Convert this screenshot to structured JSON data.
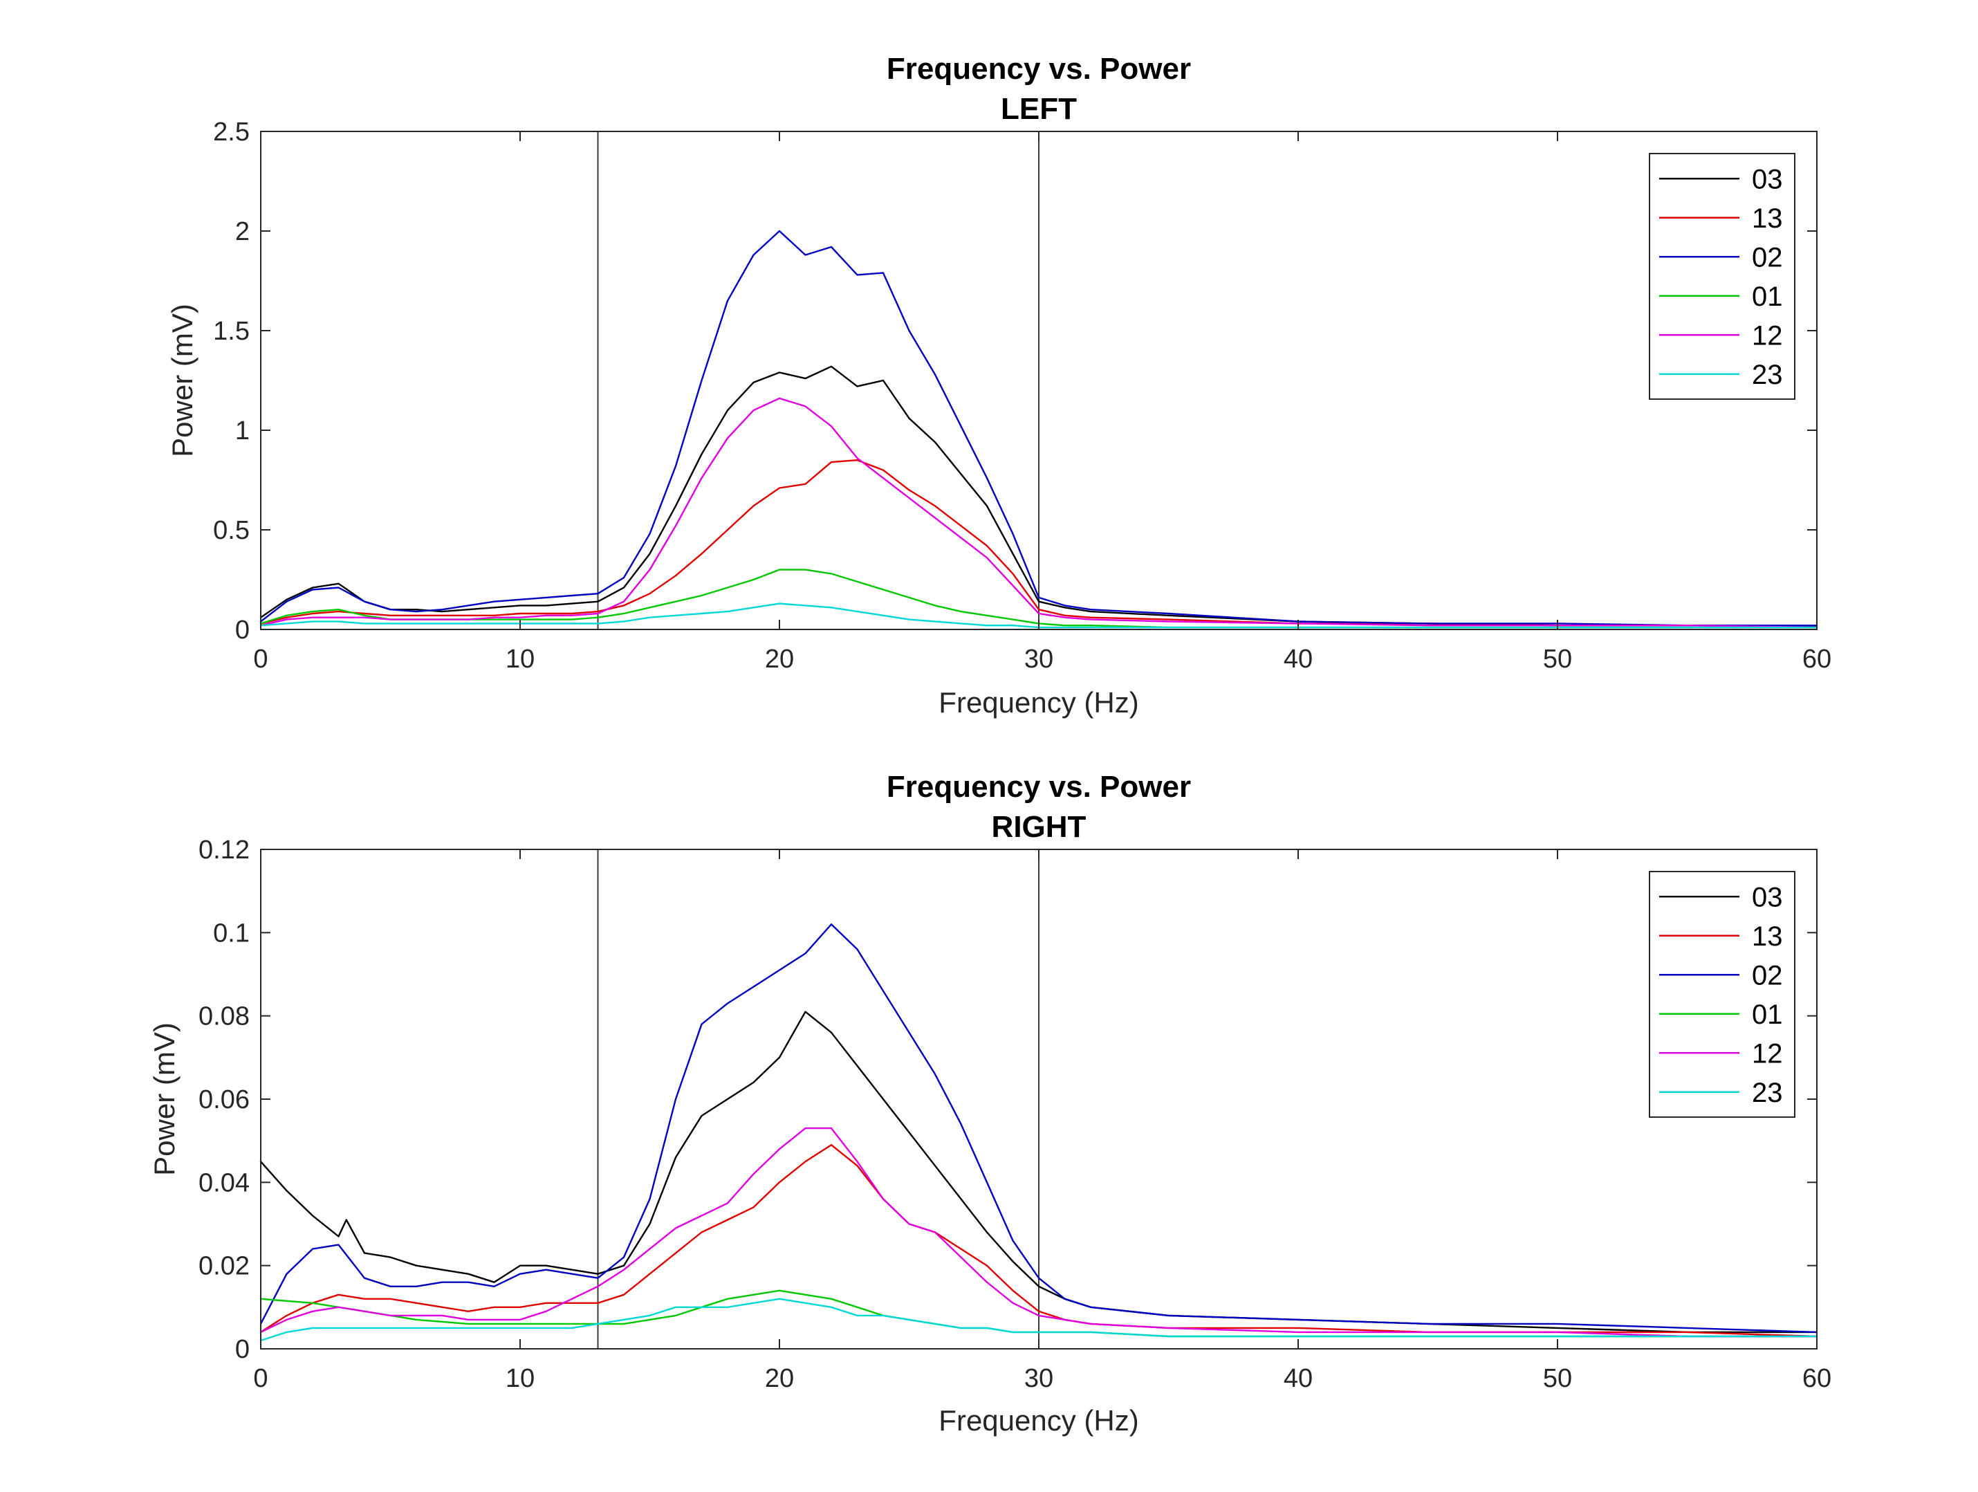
{
  "chart_data": [
    {
      "type": "line",
      "title": "Frequency vs. Power",
      "subtitle": "LEFT",
      "xlabel": "Frequency (Hz)",
      "ylabel": "Power (mV)",
      "xlim": [
        0,
        60
      ],
      "ylim": [
        0,
        2.5
      ],
      "xticks": [
        0,
        10,
        20,
        30,
        40,
        50,
        60
      ],
      "yticks": [
        0,
        0.5,
        1,
        1.5,
        2,
        2.5
      ],
      "xtick_labels": [
        "0",
        "10",
        "20",
        "30",
        "40",
        "50",
        "60"
      ],
      "ytick_labels": [
        "0",
        "0.5",
        "1",
        "1.5",
        "2",
        "2.5"
      ],
      "vlines": [
        13,
        30
      ],
      "legend_position": "top-right",
      "grid": false,
      "series": [
        {
          "name": "03",
          "color": "#000000",
          "x": [
            0,
            1,
            2,
            3,
            4,
            5,
            6,
            7,
            8,
            9,
            10,
            11,
            12,
            13,
            14,
            15,
            16,
            17,
            18,
            19,
            20,
            21,
            22,
            23,
            24,
            25,
            26,
            27,
            28,
            29,
            30,
            31,
            32,
            35,
            40,
            45,
            50,
            55,
            60
          ],
          "y": [
            0.06,
            0.15,
            0.21,
            0.23,
            0.14,
            0.1,
            0.1,
            0.09,
            0.1,
            0.11,
            0.12,
            0.12,
            0.13,
            0.14,
            0.21,
            0.38,
            0.62,
            0.88,
            1.1,
            1.24,
            1.29,
            1.26,
            1.32,
            1.22,
            1.25,
            1.06,
            0.94,
            0.78,
            0.62,
            0.38,
            0.14,
            0.11,
            0.09,
            0.07,
            0.04,
            0.03,
            0.02,
            0.02,
            0.015
          ]
        },
        {
          "name": "13",
          "color": "#e00000",
          "x": [
            0,
            1,
            2,
            3,
            4,
            5,
            6,
            7,
            8,
            9,
            10,
            11,
            12,
            13,
            14,
            15,
            16,
            17,
            18,
            19,
            20,
            21,
            22,
            23,
            24,
            25,
            26,
            27,
            28,
            29,
            30,
            31,
            32,
            35,
            40,
            45,
            50,
            55,
            60
          ],
          "y": [
            0.03,
            0.06,
            0.08,
            0.09,
            0.08,
            0.07,
            0.07,
            0.07,
            0.07,
            0.07,
            0.08,
            0.08,
            0.08,
            0.09,
            0.12,
            0.18,
            0.27,
            0.38,
            0.5,
            0.62,
            0.71,
            0.73,
            0.84,
            0.85,
            0.8,
            0.7,
            0.62,
            0.52,
            0.42,
            0.28,
            0.1,
            0.07,
            0.06,
            0.05,
            0.03,
            0.03,
            0.02,
            0.02,
            0.02
          ]
        },
        {
          "name": "02",
          "color": "#0000c0",
          "x": [
            0,
            1,
            2,
            3,
            4,
            5,
            6,
            7,
            8,
            9,
            10,
            11,
            12,
            13,
            14,
            15,
            16,
            17,
            18,
            19,
            20,
            21,
            22,
            23,
            24,
            25,
            26,
            27,
            28,
            29,
            30,
            31,
            32,
            35,
            40,
            45,
            50,
            55,
            60
          ],
          "y": [
            0.04,
            0.14,
            0.2,
            0.21,
            0.14,
            0.1,
            0.09,
            0.1,
            0.12,
            0.14,
            0.15,
            0.16,
            0.17,
            0.18,
            0.26,
            0.48,
            0.82,
            1.25,
            1.65,
            1.88,
            2.0,
            1.88,
            1.92,
            1.78,
            1.79,
            1.5,
            1.28,
            1.02,
            0.76,
            0.48,
            0.16,
            0.12,
            0.1,
            0.08,
            0.04,
            0.03,
            0.03,
            0.02,
            0.02
          ]
        },
        {
          "name": "01",
          "color": "#00c800",
          "x": [
            0,
            1,
            2,
            3,
            4,
            5,
            6,
            7,
            8,
            9,
            10,
            11,
            12,
            13,
            14,
            15,
            16,
            17,
            18,
            19,
            20,
            21,
            22,
            23,
            24,
            25,
            26,
            27,
            28,
            29,
            30,
            31,
            32,
            35,
            40,
            45,
            50,
            55,
            60
          ],
          "y": [
            0.03,
            0.07,
            0.09,
            0.1,
            0.07,
            0.05,
            0.05,
            0.05,
            0.05,
            0.05,
            0.05,
            0.05,
            0.05,
            0.06,
            0.08,
            0.11,
            0.14,
            0.17,
            0.21,
            0.25,
            0.3,
            0.3,
            0.28,
            0.24,
            0.2,
            0.16,
            0.12,
            0.09,
            0.07,
            0.05,
            0.03,
            0.02,
            0.02,
            0.01,
            0.01,
            0.01,
            0.01,
            0.01,
            0.01
          ]
        },
        {
          "name": "12",
          "color": "#e000e0",
          "x": [
            0,
            1,
            2,
            3,
            4,
            5,
            6,
            7,
            8,
            9,
            10,
            11,
            12,
            13,
            14,
            15,
            16,
            17,
            18,
            19,
            20,
            21,
            22,
            23,
            24,
            25,
            26,
            27,
            28,
            29,
            30,
            31,
            32,
            35,
            40,
            45,
            50,
            55,
            60
          ],
          "y": [
            0.02,
            0.05,
            0.06,
            0.06,
            0.06,
            0.05,
            0.05,
            0.05,
            0.05,
            0.06,
            0.06,
            0.07,
            0.07,
            0.08,
            0.14,
            0.3,
            0.52,
            0.76,
            0.96,
            1.1,
            1.16,
            1.12,
            1.02,
            0.86,
            0.76,
            0.66,
            0.56,
            0.46,
            0.36,
            0.22,
            0.08,
            0.06,
            0.05,
            0.04,
            0.03,
            0.02,
            0.02,
            0.02,
            0.01
          ]
        },
        {
          "name": "23",
          "color": "#00d8d8",
          "x": [
            0,
            1,
            2,
            3,
            4,
            5,
            6,
            7,
            8,
            9,
            10,
            11,
            12,
            13,
            14,
            15,
            16,
            17,
            18,
            19,
            20,
            21,
            22,
            23,
            24,
            25,
            26,
            27,
            28,
            29,
            30,
            31,
            32,
            35,
            40,
            45,
            50,
            55,
            60
          ],
          "y": [
            0.02,
            0.03,
            0.04,
            0.04,
            0.03,
            0.03,
            0.03,
            0.03,
            0.03,
            0.03,
            0.03,
            0.03,
            0.03,
            0.03,
            0.04,
            0.06,
            0.07,
            0.08,
            0.09,
            0.11,
            0.13,
            0.12,
            0.11,
            0.09,
            0.07,
            0.05,
            0.04,
            0.03,
            0.02,
            0.02,
            0.01,
            0.01,
            0.01,
            0.01,
            0.01,
            0.01,
            0.01,
            0.01,
            0.01
          ]
        }
      ]
    },
    {
      "type": "line",
      "title": "Frequency vs. Power",
      "subtitle": "RIGHT",
      "xlabel": "Frequency (Hz)",
      "ylabel": "Power (mV)",
      "xlim": [
        0,
        60
      ],
      "ylim": [
        0,
        0.12
      ],
      "xticks": [
        0,
        10,
        20,
        30,
        40,
        50,
        60
      ],
      "yticks": [
        0,
        0.02,
        0.04,
        0.06,
        0.08,
        0.1,
        0.12
      ],
      "xtick_labels": [
        "0",
        "10",
        "20",
        "30",
        "40",
        "50",
        "60"
      ],
      "ytick_labels": [
        "0",
        "0.02",
        "0.04",
        "0.06",
        "0.08",
        "0.1",
        "0.12"
      ],
      "vlines": [
        13,
        30
      ],
      "legend_position": "top-right",
      "grid": false,
      "series": [
        {
          "name": "03",
          "color": "#000000",
          "x": [
            0,
            1,
            2,
            3,
            3.3,
            4,
            5,
            6,
            7,
            8,
            9,
            10,
            11,
            12,
            13,
            14,
            15,
            16,
            17,
            18,
            19,
            20,
            21,
            22,
            23,
            24,
            25,
            26,
            27,
            28,
            29,
            30,
            31,
            32,
            35,
            40,
            45,
            50,
            55,
            60
          ],
          "y": [
            0.045,
            0.038,
            0.032,
            0.027,
            0.031,
            0.023,
            0.022,
            0.02,
            0.019,
            0.018,
            0.016,
            0.02,
            0.02,
            0.019,
            0.018,
            0.02,
            0.03,
            0.046,
            0.056,
            0.06,
            0.064,
            0.07,
            0.081,
            0.076,
            0.068,
            0.06,
            0.052,
            0.044,
            0.036,
            0.028,
            0.021,
            0.015,
            0.012,
            0.01,
            0.008,
            0.007,
            0.006,
            0.005,
            0.004,
            0.004
          ]
        },
        {
          "name": "13",
          "color": "#e00000",
          "x": [
            0,
            1,
            2,
            3,
            4,
            5,
            6,
            7,
            8,
            9,
            10,
            11,
            12,
            13,
            14,
            15,
            16,
            17,
            18,
            19,
            20,
            21,
            22,
            23,
            24,
            25,
            26,
            27,
            28,
            29,
            30,
            31,
            32,
            35,
            40,
            45,
            50,
            55,
            60
          ],
          "y": [
            0.004,
            0.008,
            0.011,
            0.013,
            0.012,
            0.012,
            0.011,
            0.01,
            0.009,
            0.01,
            0.01,
            0.011,
            0.011,
            0.011,
            0.013,
            0.018,
            0.023,
            0.028,
            0.031,
            0.034,
            0.04,
            0.045,
            0.049,
            0.044,
            0.036,
            0.03,
            0.028,
            0.024,
            0.02,
            0.014,
            0.009,
            0.007,
            0.006,
            0.005,
            0.005,
            0.004,
            0.004,
            0.004,
            0.003
          ]
        },
        {
          "name": "02",
          "color": "#0000c0",
          "x": [
            0,
            1,
            2,
            3,
            4,
            5,
            6,
            7,
            8,
            9,
            10,
            11,
            12,
            13,
            14,
            15,
            16,
            17,
            18,
            19,
            20,
            21,
            22,
            23,
            24,
            25,
            26,
            27,
            28,
            29,
            30,
            31,
            32,
            35,
            40,
            45,
            50,
            55,
            60
          ],
          "y": [
            0.006,
            0.018,
            0.024,
            0.025,
            0.017,
            0.015,
            0.015,
            0.016,
            0.016,
            0.015,
            0.018,
            0.019,
            0.018,
            0.017,
            0.022,
            0.036,
            0.06,
            0.078,
            0.083,
            0.087,
            0.091,
            0.095,
            0.102,
            0.096,
            0.086,
            0.076,
            0.066,
            0.054,
            0.04,
            0.026,
            0.017,
            0.012,
            0.01,
            0.008,
            0.007,
            0.006,
            0.006,
            0.005,
            0.004
          ]
        },
        {
          "name": "01",
          "color": "#00c800",
          "x": [
            0,
            2,
            4,
            6,
            8,
            10,
            12,
            13,
            14,
            15,
            16,
            17,
            18,
            19,
            20,
            21,
            22,
            23,
            24,
            25,
            26,
            27,
            28,
            29,
            30,
            31,
            32,
            35,
            40,
            45,
            50,
            55,
            60
          ],
          "y": [
            0.012,
            0.011,
            0.009,
            0.007,
            0.006,
            0.006,
            0.006,
            0.006,
            0.006,
            0.007,
            0.008,
            0.01,
            0.012,
            0.013,
            0.014,
            0.013,
            0.012,
            0.01,
            0.008,
            0.007,
            0.006,
            0.005,
            0.005,
            0.004,
            0.004,
            0.004,
            0.004,
            0.003,
            0.003,
            0.003,
            0.003,
            0.003,
            0.003
          ]
        },
        {
          "name": "12",
          "color": "#e000e0",
          "x": [
            0,
            1,
            2,
            3,
            4,
            5,
            6,
            7,
            8,
            9,
            10,
            11,
            12,
            13,
            14,
            15,
            16,
            17,
            18,
            19,
            20,
            21,
            22,
            23,
            24,
            25,
            26,
            27,
            28,
            29,
            30,
            31,
            32,
            35,
            40,
            45,
            50,
            55,
            60
          ],
          "y": [
            0.004,
            0.007,
            0.009,
            0.01,
            0.009,
            0.008,
            0.008,
            0.008,
            0.007,
            0.007,
            0.007,
            0.009,
            0.012,
            0.015,
            0.019,
            0.024,
            0.029,
            0.032,
            0.035,
            0.042,
            0.048,
            0.053,
            0.053,
            0.045,
            0.036,
            0.03,
            0.028,
            0.022,
            0.016,
            0.011,
            0.008,
            0.007,
            0.006,
            0.005,
            0.004,
            0.004,
            0.004,
            0.003,
            0.003
          ]
        },
        {
          "name": "23",
          "color": "#00d8d8",
          "x": [
            0,
            1,
            2,
            3,
            4,
            5,
            6,
            7,
            8,
            9,
            10,
            11,
            12,
            13,
            14,
            15,
            16,
            17,
            18,
            19,
            20,
            21,
            22,
            23,
            24,
            25,
            26,
            27,
            28,
            29,
            30,
            31,
            32,
            35,
            40,
            45,
            50,
            55,
            60
          ],
          "y": [
            0.002,
            0.004,
            0.005,
            0.005,
            0.005,
            0.005,
            0.005,
            0.005,
            0.005,
            0.005,
            0.005,
            0.005,
            0.005,
            0.006,
            0.007,
            0.008,
            0.01,
            0.01,
            0.01,
            0.011,
            0.012,
            0.011,
            0.01,
            0.008,
            0.008,
            0.007,
            0.006,
            0.005,
            0.005,
            0.004,
            0.004,
            0.004,
            0.004,
            0.003,
            0.003,
            0.003,
            0.003,
            0.003,
            0.003
          ]
        }
      ]
    }
  ]
}
